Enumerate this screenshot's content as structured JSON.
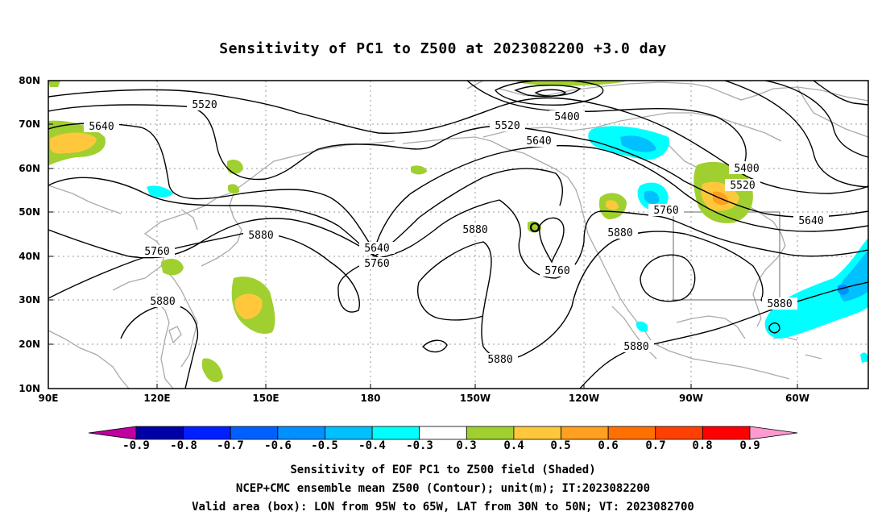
{
  "title": "Sensitivity of PC1 to Z500 at 2023082200 +3.0 day",
  "lat_labels": [
    "80N",
    "70N",
    "60N",
    "50N",
    "40N",
    "30N",
    "20N",
    "10N"
  ],
  "lon_labels": [
    "90E",
    "120E",
    "150E",
    "180",
    "150W",
    "120W",
    "90W",
    "60W"
  ],
  "contour_labels": [
    "5520",
    "5640",
    "5520",
    "5400",
    "5640",
    "5400",
    "5520",
    "5760",
    "5640",
    "5760",
    "5880",
    "5640",
    "5760",
    "5880",
    "5760",
    "5880",
    "5880",
    "5880",
    "5880",
    "5880"
  ],
  "colorbar": {
    "labels": [
      "-0.9",
      "-0.8",
      "-0.7",
      "-0.6",
      "-0.5",
      "-0.4",
      "-0.3",
      "0.3",
      "0.4",
      "0.5",
      "0.6",
      "0.7",
      "0.8",
      "0.9"
    ],
    "colors": [
      "#0000a8",
      "#0020ff",
      "#0060ff",
      "#0090ff",
      "#00c0ff",
      "#00ffff",
      "#ffffff",
      "#a0d030",
      "#ffc83c",
      "#ffa020",
      "#ff7000",
      "#ff4000",
      "#ff0000"
    ],
    "under_color": "#c000a0",
    "over_color": "#ff9ad0"
  },
  "captions": [
    "Sensitivity of EOF PC1 to Z500 field (Shaded)",
    "NCEP+CMC ensemble mean Z500 (Contour); unit(m); IT:2023082200",
    "Valid area (box): LON from 95W to 65W, LAT from 30N to 50N; VT: 2023082700"
  ]
}
